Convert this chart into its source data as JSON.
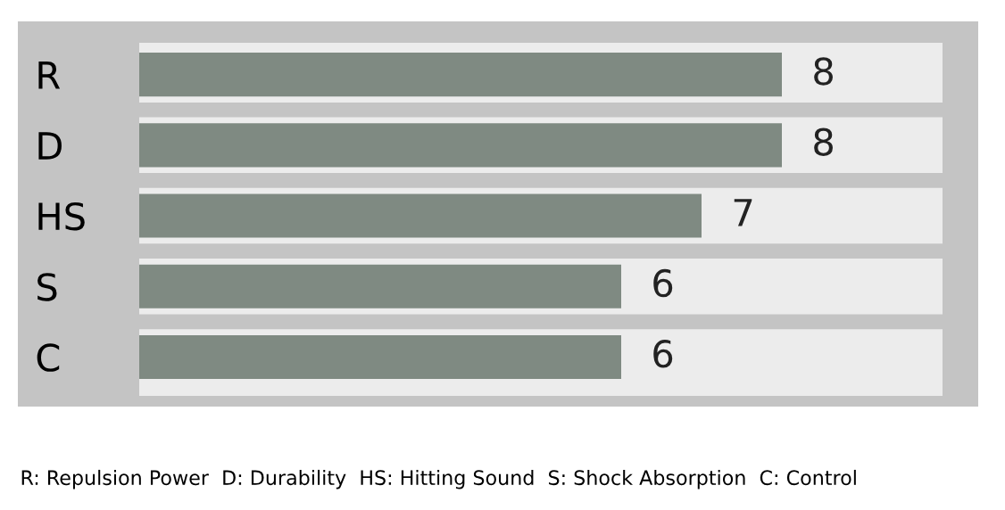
{
  "chart_data": {
    "type": "bar",
    "orientation": "horizontal",
    "categories": [
      "R",
      "D",
      "HS",
      "S",
      "C"
    ],
    "values": [
      8,
      8,
      7,
      6,
      6
    ],
    "color": "#7f8a82",
    "xlim": [
      0,
      10
    ],
    "tick_labels": "y",
    "data_labels": true,
    "annotations": [
      "R: Repulsion Power  D: Durability  HS: Hitting Sound  S: Shock Absorption  C: Control"
    ]
  }
}
